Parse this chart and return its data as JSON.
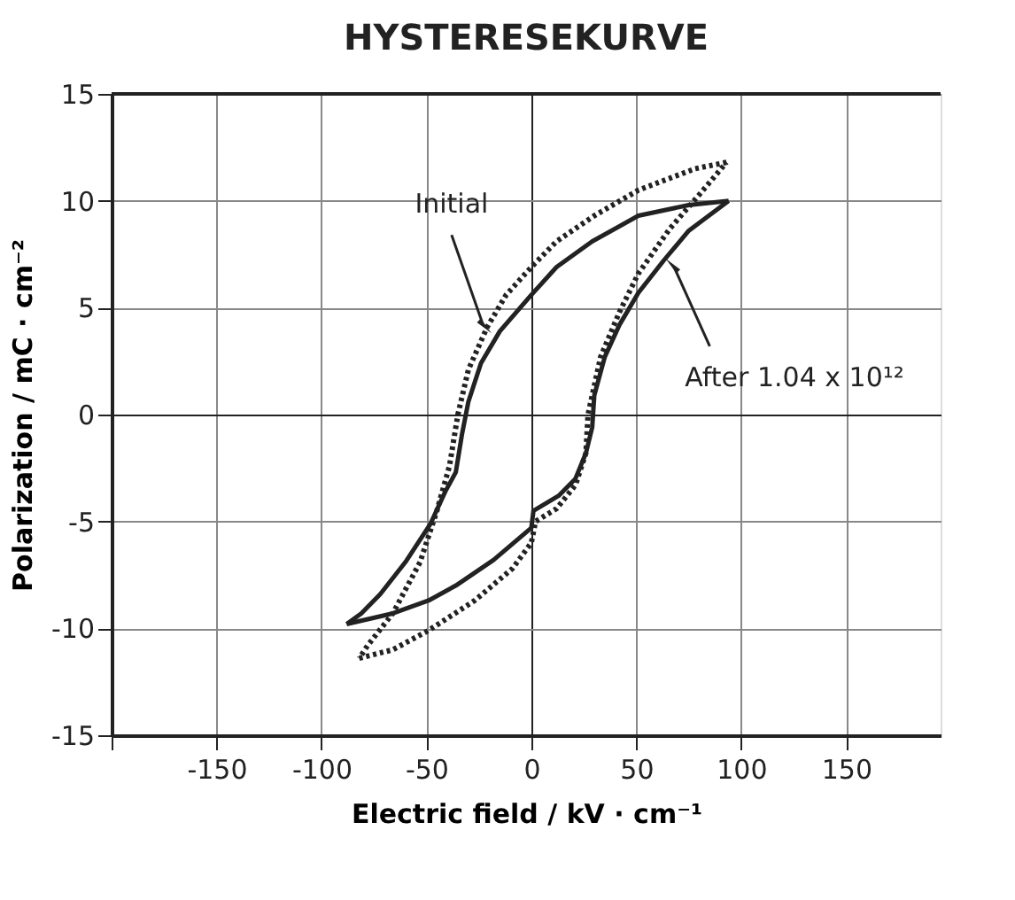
{
  "chart_data": {
    "type": "line",
    "title": "HYSTERESEKURVE",
    "xlabel": "Electric field / kV · cm⁻¹",
    "ylabel": "Polarization / mC · cm⁻²",
    "xlim": [
      -200,
      195
    ],
    "xticks": [
      {
        "value": -200,
        "label": null
      },
      -150,
      -100,
      -50,
      0,
      50,
      100,
      150
    ],
    "ylim": [
      -15,
      15
    ],
    "yticks": [
      -15,
      -10,
      -5,
      0,
      5,
      10,
      15
    ],
    "grid": true,
    "marker": "none",
    "annotations": [
      {
        "text": "Initial",
        "x": -23,
        "y": 4.2
      },
      {
        "text": "After 1.04 x 10¹²",
        "x": 68,
        "y": 6.9
      }
    ],
    "series": [
      {
        "color": "#222222",
        "line_style": "dotted",
        "x": [
          93,
          78,
          51,
          30,
          12,
          0,
          -12,
          -21,
          -30,
          -35,
          -39,
          -45,
          -53,
          -66,
          -78,
          -82
        ],
        "values": [
          11.8,
          11.5,
          10.5,
          9.3,
          8.1,
          6.9,
          5.6,
          4.1,
          2.1,
          0,
          -2.4,
          -4.5,
          -6.9,
          -9.3,
          -10.8,
          -11.4
        ]
      },
      {
        "color": "#222222",
        "line_style": "dotted",
        "x": [
          -82,
          -66,
          -49,
          -27,
          -9,
          0,
          2,
          12,
          21,
          26,
          27,
          33,
          42,
          51,
          66,
          81,
          93
        ],
        "values": [
          -11.4,
          -11,
          -10.1,
          -8.7,
          -7.2,
          -6,
          -5,
          -4.4,
          -3.3,
          -1.8,
          0,
          2.7,
          4.8,
          6.6,
          8.7,
          10.4,
          11.8
        ]
      },
      {
        "color": "#222222",
        "line_style": "solid",
        "x": [
          94,
          75,
          51,
          29,
          12,
          0,
          -15,
          -24,
          -30,
          -33,
          -36,
          -41,
          -48,
          -60,
          -72,
          -81,
          -88
        ],
        "values": [
          10,
          9.8,
          9.3,
          8.1,
          6.9,
          5.6,
          3.9,
          2.4,
          0.6,
          -0.9,
          -2.7,
          -3.6,
          -5.1,
          -6.9,
          -8.4,
          -9.3,
          -9.8
        ]
      },
      {
        "color": "#222222",
        "line_style": "solid",
        "x": [
          -88,
          -66,
          -49,
          -36,
          -18,
          0,
          1,
          13,
          21,
          26,
          29,
          30,
          35,
          42,
          51,
          63,
          75,
          94
        ],
        "values": [
          -9.8,
          -9.3,
          -8.7,
          -8,
          -6.8,
          -5.3,
          -4.5,
          -3.8,
          -3,
          -1.8,
          -0.6,
          0.9,
          2.7,
          4.2,
          5.7,
          7.2,
          8.6,
          10
        ]
      }
    ]
  }
}
